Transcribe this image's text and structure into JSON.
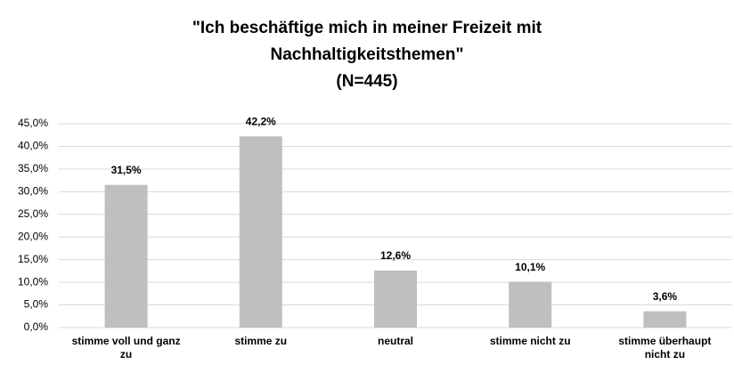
{
  "chart_data": {
    "type": "bar",
    "title": [
      "\"Ich beschäftige mich in meiner Freizeit mit",
      "Nachhaltigkeitsthemen\"",
      "(N=445)"
    ],
    "categories": [
      "stimme voll und ganz zu",
      "stimme zu",
      "neutral",
      "stimme nicht zu",
      "stimme überhaupt nicht zu"
    ],
    "values": [
      31.5,
      42.2,
      12.6,
      10.1,
      3.6
    ],
    "value_labels": [
      "31,5%",
      "42,2%",
      "12,6%",
      "10,1%",
      "3,6%"
    ],
    "color": "#bfbfbf",
    "ylim": [
      0,
      45
    ],
    "yticks": [
      {
        "value": 0,
        "label": "0,0%"
      },
      {
        "value": 5,
        "label": "5,0%"
      },
      {
        "value": 10,
        "label": "10,0%"
      },
      {
        "value": 15,
        "label": "15,0%"
      },
      {
        "value": 20,
        "label": "20,0%"
      },
      {
        "value": 25,
        "label": "25,0%"
      },
      {
        "value": 30,
        "label": "30,0%"
      },
      {
        "value": 35,
        "label": "35,0%"
      },
      {
        "value": 40,
        "label": "40,0%"
      },
      {
        "value": 45,
        "label": "45,0%"
      }
    ],
    "grid": true
  }
}
